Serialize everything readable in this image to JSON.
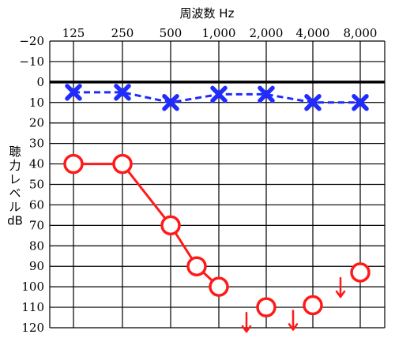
{
  "chart_data": {
    "type": "line",
    "title": "周波数 Hz",
    "ylabel_lines": [
      "聴",
      "力",
      "レ",
      "ベ",
      "ル",
      "dB"
    ],
    "x_categories": [
      "125",
      "250",
      "500",
      "1,000",
      "2,000",
      "4,000",
      "8,000"
    ],
    "y_ticks": [
      "-20",
      "-10",
      "0",
      "10",
      "20",
      "30",
      "40",
      "50",
      "60",
      "70",
      "80",
      "90",
      "100",
      "110",
      "120"
    ],
    "ylim": [
      -20,
      120
    ],
    "y_inverted": true,
    "grid": true,
    "series": [
      {
        "marker": "x",
        "line_style": "dashed",
        "color": "#1f2bff",
        "points": [
          {
            "x": "125",
            "y": 5
          },
          {
            "x": "250",
            "y": 5
          },
          {
            "x": "500",
            "y": 10
          },
          {
            "x": "1,000",
            "y": 6
          },
          {
            "x": "2,000",
            "y": 6
          },
          {
            "x": "4,000",
            "y": 10
          },
          {
            "x": "8,000",
            "y": 10
          }
        ]
      },
      {
        "marker": "o",
        "line_style": "solid",
        "color": "#ff1a1a",
        "points": [
          {
            "x": "125",
            "y": 40
          },
          {
            "x": "250",
            "y": 40
          },
          {
            "x": "500",
            "y": 70
          },
          {
            "x": "750",
            "y": 90
          },
          {
            "x": "1,000",
            "y": 100
          }
        ]
      },
      {
        "marker": "o-no-response",
        "line_style": "none",
        "color": "#ff1a1a",
        "points": [
          {
            "x": "2,000",
            "y": 110
          },
          {
            "x": "4,000",
            "y": 109
          },
          {
            "x": "8,000",
            "y": 93
          }
        ]
      }
    ]
  }
}
